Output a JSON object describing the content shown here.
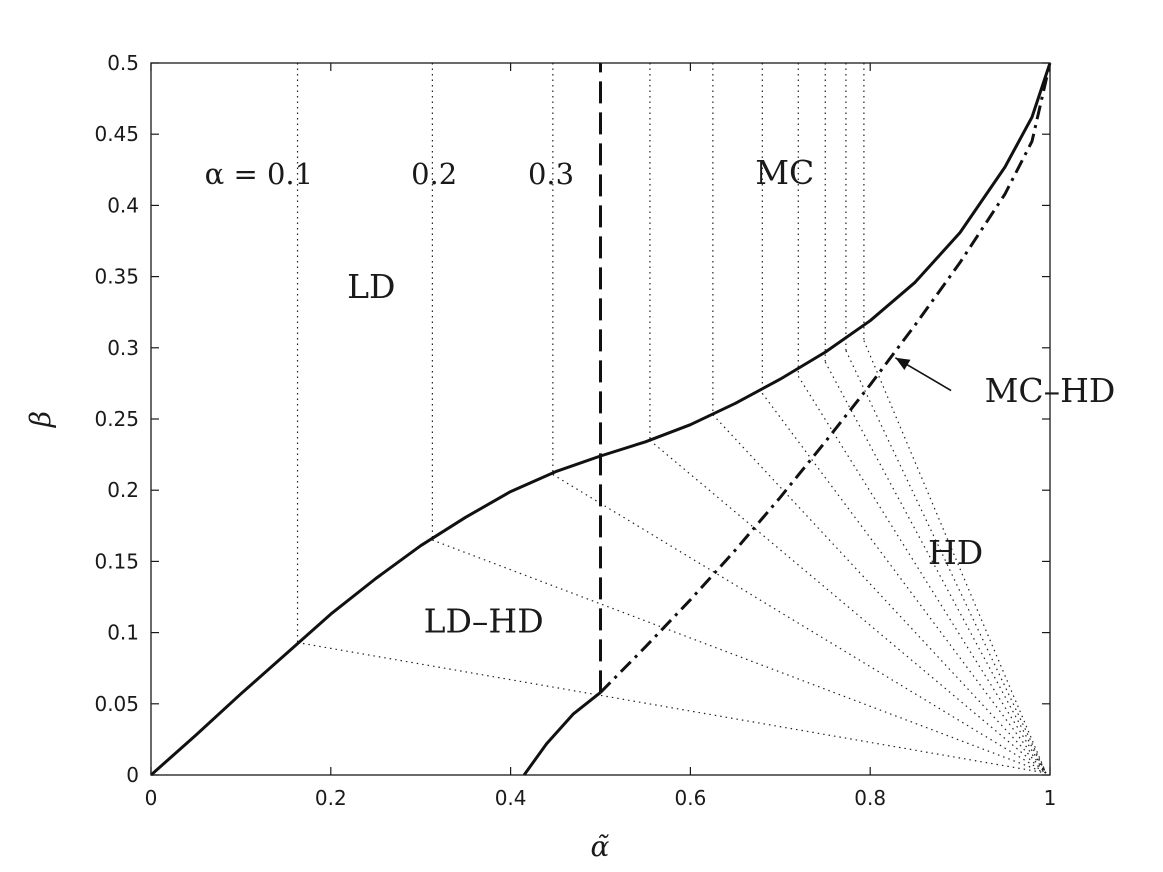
{
  "chart_data": {
    "type": "line",
    "title": "",
    "xlabel": "α̃",
    "ylabel": "β",
    "xlim": [
      0,
      1
    ],
    "ylim": [
      0,
      0.5
    ],
    "xticks": [
      0,
      0.2,
      0.4,
      0.6,
      0.8,
      1
    ],
    "yticks": [
      0,
      0.05,
      0.1,
      0.15,
      0.2,
      0.25,
      0.3,
      0.35,
      0.4,
      0.45,
      0.5
    ],
    "xtick_labels": [
      "0",
      "0.2",
      "0.4",
      "0.6",
      "0.8",
      "1"
    ],
    "ytick_labels": [
      "0",
      "0.05",
      "0.1",
      "0.15",
      "0.2",
      "0.25",
      "0.3",
      "0.35",
      "0.4",
      "0.45",
      "0.5"
    ],
    "grid": false,
    "series": [
      {
        "style": "solid",
        "x": [
          0,
          0.05,
          0.1,
          0.15,
          0.2,
          0.25,
          0.3,
          0.35,
          0.4,
          0.45,
          0.5,
          0.55,
          0.6,
          0.65,
          0.7,
          0.75,
          0.8,
          0.85,
          0.9,
          0.95,
          0.98,
          1
        ],
        "y": [
          0,
          0.028,
          0.057,
          0.085,
          0.113,
          0.138,
          0.161,
          0.181,
          0.199,
          0.213,
          0.224,
          0.234,
          0.246,
          0.261,
          0.278,
          0.297,
          0.319,
          0.346,
          0.381,
          0.427,
          0.462,
          0.5
        ]
      },
      {
        "style": "solid",
        "x": [
          0.415,
          0.44,
          0.47,
          0.5
        ],
        "y": [
          0,
          0.022,
          0.043,
          0.058
        ]
      },
      {
        "style": "dash-dot",
        "x": [
          0.5,
          0.55,
          0.6,
          0.65,
          0.7,
          0.75,
          0.8,
          0.85,
          0.9,
          0.95,
          0.98,
          1
        ],
        "y": [
          0.058,
          0.09,
          0.123,
          0.158,
          0.195,
          0.234,
          0.274,
          0.316,
          0.36,
          0.408,
          0.445,
          0.5
        ]
      },
      {
        "style": "dashed",
        "x": [
          0.5,
          0.5
        ],
        "y": [
          0.058,
          0.5
        ]
      }
    ],
    "trajectories": [
      {
        "x": 0.163,
        "y": 0.093
      },
      {
        "x": 0.313,
        "y": 0.165
      },
      {
        "x": 0.447,
        "y": 0.211
      },
      {
        "x": 0.555,
        "y": 0.235
      },
      {
        "x": 0.625,
        "y": 0.253
      },
      {
        "x": 0.68,
        "y": 0.268
      },
      {
        "x": 0.72,
        "y": 0.28
      },
      {
        "x": 0.75,
        "y": 0.29
      },
      {
        "x": 0.773,
        "y": 0.298
      },
      {
        "x": 0.793,
        "y": 0.305
      }
    ],
    "trajectory_focus": {
      "x": 1,
      "y": 0
    },
    "annotations": [
      {
        "text": "LD",
        "x": 0.245,
        "y": 0.335,
        "kind": "region"
      },
      {
        "text": "MC",
        "x": 0.705,
        "y": 0.415,
        "kind": "region"
      },
      {
        "text": "HD",
        "x": 0.895,
        "y": 0.148,
        "kind": "region"
      },
      {
        "text": "LD–HD",
        "x": 0.37,
        "y": 0.1,
        "kind": "region"
      },
      {
        "text": "MC–HD",
        "x": 1.0,
        "y": 0.262,
        "kind": "region"
      },
      {
        "text": "α = 0.1",
        "x": 0.12,
        "y": 0.415,
        "kind": "alpha"
      },
      {
        "text": "0.2",
        "x": 0.315,
        "y": 0.415,
        "kind": "alpha"
      },
      {
        "text": "0.3",
        "x": 0.445,
        "y": 0.415,
        "kind": "alpha"
      }
    ],
    "arrow": {
      "from": [
        0.89,
        0.27
      ],
      "to": [
        0.828,
        0.293
      ]
    }
  }
}
